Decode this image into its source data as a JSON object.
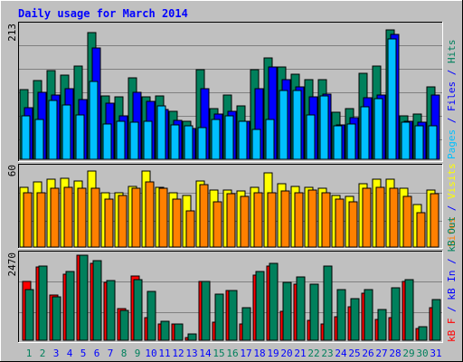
{
  "title": "Daily usage for March 2014",
  "panels": {
    "top": {
      "ymax_label": "213",
      "legend": [
        {
          "text": "Pages",
          "color": "#00C0FF"
        },
        {
          "text": " / ",
          "color": "#0000FF"
        },
        {
          "text": "Files",
          "color": "#0000FF"
        },
        {
          "text": " / ",
          "color": "#0000FF"
        },
        {
          "text": "Hits",
          "color": "#00805C"
        }
      ]
    },
    "middle": {
      "ymax_label": "60",
      "legend": [
        {
          "text": "Sites",
          "color": "#FF8000"
        },
        {
          "text": " / ",
          "color": "#0000FF"
        },
        {
          "text": "Visits",
          "color": "#FFFF00"
        }
      ]
    },
    "bottom": {
      "ymax_label": "2470",
      "legend": [
        {
          "text": "kB F",
          "color": "#FF0000"
        },
        {
          "text": " / ",
          "color": "#0000FF"
        },
        {
          "text": "kB In",
          "color": "#0000FF"
        },
        {
          "text": " / ",
          "color": "#0000FF"
        },
        {
          "text": "kB Out",
          "color": "#00805C"
        }
      ]
    }
  },
  "colors": {
    "background": "#C0C0C0",
    "title": "#0000FF",
    "hits": "#00805C",
    "files": "#0000FF",
    "pages": "#00C0FF",
    "visits": "#FFFF00",
    "sites": "#FF8000",
    "kbin": "#FF0000",
    "kbout": "#00805C",
    "weekday_label": "#0000FF",
    "weekend_label": "#00805C"
  },
  "chart_data": {
    "type": "bar",
    "categories": [
      "1",
      "2",
      "3",
      "4",
      "5",
      "6",
      "7",
      "8",
      "9",
      "10",
      "11",
      "12",
      "13",
      "14",
      "15",
      "16",
      "17",
      "18",
      "19",
      "20",
      "21",
      "22",
      "23",
      "24",
      "25",
      "26",
      "27",
      "28",
      "29",
      "30",
      "31"
    ],
    "weekend_days": [
      "1",
      "2",
      "8",
      "9",
      "15",
      "16",
      "22",
      "23",
      "29",
      "30"
    ],
    "panels": [
      {
        "name": "top",
        "ymax": 213,
        "series": [
          {
            "name": "Hits",
            "values": [
              113,
              128,
              144,
              136,
              152,
              205,
              103,
              101,
              132,
              101,
              103,
              78,
              62,
              146,
              82,
              104,
              86,
              146,
              164,
              150,
              138,
              130,
              130,
              76,
              82,
              139,
              151,
              210,
              70,
              74,
              118
            ]
          },
          {
            "name": "Files",
            "values": [
              83,
              109,
              104,
              115,
              97,
              181,
              91,
              70,
              109,
              94,
              81,
              63,
              50,
              114,
              74,
              78,
              62,
              114,
              150,
              130,
              118,
              102,
              106,
              56,
              68,
              100,
              105,
              202,
              61,
              60,
              105
            ]
          },
          {
            "name": "Pages",
            "values": [
              70,
              65,
              95,
              88,
              72,
              126,
              58,
              62,
              60,
              62,
              86,
              56,
              55,
              52,
              65,
              70,
              62,
              49,
              65,
              111,
              111,
              72,
              103,
              54,
              58,
              85,
              99,
              195,
              60,
              55,
              54
            ]
          }
        ]
      },
      {
        "name": "middle",
        "ymax": 60,
        "series": [
          {
            "name": "Visits",
            "values": [
              45,
              49,
              51,
              52,
              50,
              57,
              41,
              41,
              46,
              57,
              45,
              41,
              39,
              50,
              43,
              43,
              42,
              45,
              56,
              48,
              46,
              45,
              44,
              39,
              38,
              48,
              51,
              51,
              44,
              32,
              43
            ]
          },
          {
            "name": "Sites",
            "values": [
              41,
              41,
              44,
              45,
              44,
              44,
              36,
              39,
              44,
              49,
              44,
              36,
              27,
              47,
              34,
              40,
              38,
              41,
              41,
              42,
              41,
              43,
              41,
              36,
              34,
              44,
              45,
              44,
              38,
              26,
              40
            ]
          }
        ]
      },
      {
        "name": "bottom",
        "ymax": 2470,
        "series": [
          {
            "name": "KBytes In",
            "values": [
              1700,
              2120,
              1310,
              1910,
              2470,
              2230,
              1690,
              910,
              1870,
              670,
              460,
              460,
              80,
              1700,
              520,
              1440,
              480,
              1880,
              2150,
              840,
              1630,
              580,
              470,
              680,
              960,
              1370,
              600,
              650,
              1710,
              350,
              940
            ]
          },
          {
            "name": "KBytes Out",
            "values": [
              1480,
              2160,
              1260,
              2010,
              2470,
              2310,
              1740,
              870,
              1760,
              1410,
              550,
              460,
              180,
              1720,
              1340,
              1440,
              950,
              2000,
              2230,
              1680,
              1830,
              1640,
              2160,
              1460,
              1200,
              1480,
              890,
              1520,
              1760,
              390,
              1180
            ]
          }
        ]
      }
    ]
  }
}
